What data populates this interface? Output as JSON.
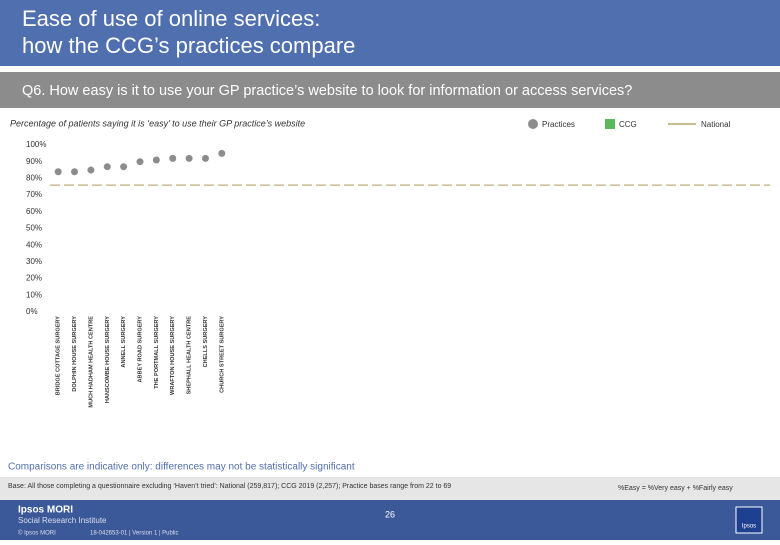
{
  "header": {
    "title_line1": "Ease of use of online services:",
    "title_line2": "how the CCG’s practices compare",
    "question": "Q6. How easy is it to use your GP practice’s website to look for information or access services?"
  },
  "chart_data": {
    "type": "scatter",
    "subtitle": "Percentage of patients saying it is ‘easy’ to use their GP practice’s website",
    "categories": [
      "BRIDGE COTTAGE SURGERY",
      "DOLPHIN HOUSE SURGERY",
      "MUCH HADHAM HEALTH CENTRE",
      "HANSCOMBE HOUSE SURGERY",
      "ANNELL SURGERY",
      "ABBEY ROAD SURGERY",
      "THE PORTMALL SURGERY",
      "WRAFTON HOUSE SURGERY",
      "SHEPHALL HEALTH CENTRE",
      "CHELLS SURGERY",
      "CHURCH STREET SURGERY"
    ],
    "series": [
      {
        "name": "Practices",
        "color": "#8c8c8c",
        "values": [
          84,
          84,
          85,
          87,
          87,
          90,
          91,
          92,
          92,
          92,
          95
        ]
      },
      {
        "name": "CCG",
        "color": "#5cb85c"
      },
      {
        "name": "National",
        "color": "#c9bc8f",
        "value": 76
      }
    ],
    "ylim": [
      0,
      100
    ],
    "yticks": [
      {
        "value": 0,
        "label": "0%"
      },
      {
        "value": 10,
        "label": "10%"
      },
      {
        "value": 20,
        "label": "20%"
      },
      {
        "value": 30,
        "label": "30%"
      },
      {
        "value": 40,
        "label": "40%"
      },
      {
        "value": 50,
        "label": "50%"
      },
      {
        "value": 60,
        "label": "60%"
      },
      {
        "value": 70,
        "label": "70%"
      },
      {
        "value": 80,
        "label": "80%"
      },
      {
        "value": 90,
        "label": "90%"
      },
      {
        "value": 100,
        "label": "100%"
      }
    ]
  },
  "footer": {
    "note": "Comparisons are indicative only: differences may not be statistically significant",
    "base": "Base: All those completing a questionnaire excluding ‘Haven’t tried’: National (259,817); CCG 2019 (2,257); Practice bases range from 22 to 69",
    "definition": "%Easy = %Very easy + %Fairly easy",
    "page": "26",
    "logo_line1": "Ipsos MORI",
    "logo_line2": "Social Research Institute",
    "copyright": "© Ipsos MORI",
    "version": "18-042653-01 | Version 1 | Public",
    "badge": "Ipsos"
  }
}
